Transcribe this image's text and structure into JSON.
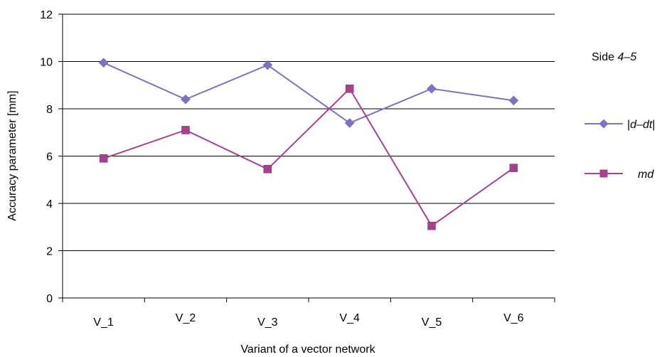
{
  "chart_data": {
    "type": "line",
    "title": "",
    "xlabel": "Variant of a vector network",
    "ylabel": "Accuracy parameter [mm]",
    "ylim": [
      0,
      12
    ],
    "yticks": [
      "0",
      "2",
      "4",
      "6",
      "8",
      "10",
      "12"
    ],
    "categories": [
      "V_1",
      "V_2",
      "V_3",
      "V_4",
      "V_5",
      "V_6"
    ],
    "grid": "horizontal",
    "legend_position": "right",
    "legend_title": {
      "prefix": "Side ",
      "italic": "4–5"
    },
    "series": [
      {
        "name": "|d–dt|",
        "name_plain_left": "|",
        "name_italic": "d–dt",
        "name_plain_right": "|",
        "values": [
          9.95,
          8.4,
          9.85,
          7.4,
          8.85,
          8.35
        ],
        "color": "#7A74C2",
        "marker": "diamond"
      },
      {
        "name": "md",
        "name_plain_left": "",
        "name_italic": "md",
        "name_plain_right": "",
        "values": [
          5.9,
          7.1,
          5.45,
          8.85,
          3.05,
          5.5
        ],
        "color": "#A8418B",
        "marker": "square"
      }
    ]
  }
}
